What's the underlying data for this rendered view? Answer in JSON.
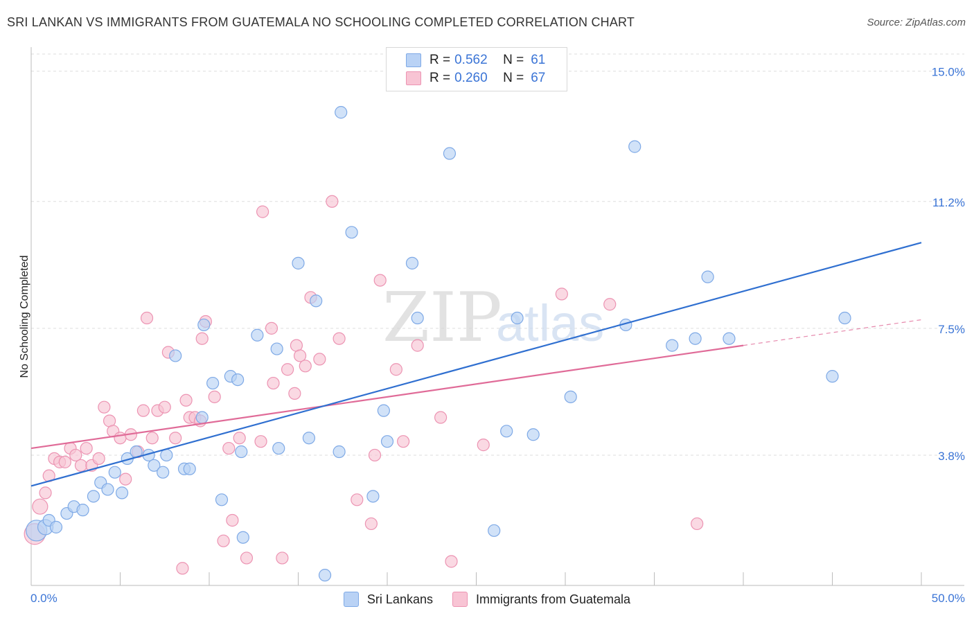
{
  "title": "SRI LANKAN VS IMMIGRANTS FROM GUATEMALA NO SCHOOLING COMPLETED CORRELATION CHART",
  "source": "Source: ZipAtlas.com",
  "watermark": {
    "zip": "ZIP",
    "atlas": "atlas"
  },
  "legend_top": [
    {
      "r_label": "R =",
      "r_value": "0.562",
      "n_label": "N =",
      "n_value": "61"
    },
    {
      "r_label": "R =",
      "r_value": "0.260",
      "n_label": "N =",
      "n_value": "67"
    }
  ],
  "colors": {
    "blue_fill": "#b9d2f5",
    "blue_stroke": "#7ea9e6",
    "blue_line": "#2f6fd0",
    "pink_fill": "#f8c4d4",
    "pink_stroke": "#ec93b2",
    "pink_line": "#e06b98",
    "grid": "#dddddd",
    "tick_label": "#3a74d6"
  },
  "chart_data": {
    "type": "scatter",
    "title": "SRI LANKAN VS IMMIGRANTS FROM GUATEMALA NO SCHOOLING COMPLETED CORRELATION CHART",
    "xlabel": "",
    "ylabel": "No Schooling Completed",
    "xlim": [
      0,
      50
    ],
    "ylim": [
      0,
      15.5
    ],
    "x_tick_labels": [
      "0.0%",
      "50.0%"
    ],
    "y_ticks": [
      3.8,
      7.5,
      11.2,
      15.0
    ],
    "y_tick_labels": [
      "3.8%",
      "7.5%",
      "11.2%",
      "15.0%"
    ],
    "grid": true,
    "legend_position": "bottom",
    "series": [
      {
        "name": "Sri Lankans",
        "color": "blue",
        "R": 0.562,
        "N": 61,
        "trendline": {
          "x": [
            0,
            50
          ],
          "y": [
            2.9,
            10.0
          ],
          "dashed_from": null
        },
        "points": [
          [
            0.3,
            1.6,
            3
          ],
          [
            0.8,
            1.7,
            2
          ],
          [
            1.0,
            1.9,
            1
          ],
          [
            1.4,
            1.7,
            1
          ],
          [
            2.0,
            2.1,
            1
          ],
          [
            2.4,
            2.3,
            1
          ],
          [
            2.9,
            2.2,
            1
          ],
          [
            3.5,
            2.6,
            1
          ],
          [
            3.9,
            3.0,
            1
          ],
          [
            4.3,
            2.8,
            1
          ],
          [
            4.7,
            3.3,
            1
          ],
          [
            5.1,
            2.7,
            1
          ],
          [
            5.4,
            3.7,
            1
          ],
          [
            5.9,
            3.9,
            1
          ],
          [
            6.6,
            3.8,
            1
          ],
          [
            6.9,
            3.5,
            1
          ],
          [
            7.4,
            3.3,
            1
          ],
          [
            7.6,
            3.8,
            1
          ],
          [
            8.1,
            6.7,
            1
          ],
          [
            8.6,
            3.4,
            1
          ],
          [
            8.9,
            3.4,
            1
          ],
          [
            9.6,
            4.9,
            1
          ],
          [
            9.7,
            7.6,
            1
          ],
          [
            10.2,
            5.9,
            1
          ],
          [
            10.7,
            2.5,
            1
          ],
          [
            11.2,
            6.1,
            1
          ],
          [
            11.6,
            6.0,
            1
          ],
          [
            11.8,
            3.9,
            1
          ],
          [
            11.9,
            1.4,
            1
          ],
          [
            12.7,
            7.3,
            1
          ],
          [
            13.8,
            6.9,
            1
          ],
          [
            13.9,
            4.0,
            1
          ],
          [
            15.0,
            9.4,
            1
          ],
          [
            15.6,
            4.3,
            1
          ],
          [
            16.0,
            8.3,
            1
          ],
          [
            16.5,
            0.3,
            1
          ],
          [
            17.3,
            3.9,
            1
          ],
          [
            17.4,
            13.8,
            1
          ],
          [
            18.0,
            10.3,
            1
          ],
          [
            19.2,
            2.6,
            1
          ],
          [
            19.8,
            5.1,
            1
          ],
          [
            20.0,
            4.2,
            1
          ],
          [
            21.4,
            9.4,
            1
          ],
          [
            21.7,
            7.8,
            1
          ],
          [
            23.5,
            12.6,
            1
          ],
          [
            26.0,
            1.6,
            1
          ],
          [
            26.7,
            4.5,
            1
          ],
          [
            27.3,
            7.8,
            1
          ],
          [
            28.2,
            4.4,
            1
          ],
          [
            30.3,
            5.5,
            1
          ],
          [
            33.4,
            7.6,
            1
          ],
          [
            33.9,
            12.8,
            1
          ],
          [
            36.0,
            7.0,
            1
          ],
          [
            37.3,
            7.2,
            1
          ],
          [
            38.0,
            9.0,
            1
          ],
          [
            39.2,
            7.2,
            1
          ],
          [
            45.0,
            6.1,
            1
          ],
          [
            45.7,
            7.8,
            1
          ]
        ]
      },
      {
        "name": "Immigrants from Guatemala",
        "color": "pink",
        "R": 0.26,
        "N": 67,
        "trendline": {
          "x": [
            0,
            50
          ],
          "y": [
            4.0,
            7.75
          ],
          "dashed_from": 40
        },
        "points": [
          [
            0.2,
            1.5,
            4
          ],
          [
            0.5,
            2.3,
            2
          ],
          [
            0.8,
            2.7,
            1
          ],
          [
            1.0,
            3.2,
            1
          ],
          [
            1.3,
            3.7,
            1
          ],
          [
            1.6,
            3.6,
            1
          ],
          [
            1.9,
            3.6,
            1
          ],
          [
            2.2,
            4.0,
            1
          ],
          [
            2.5,
            3.8,
            1
          ],
          [
            2.8,
            3.5,
            1
          ],
          [
            3.1,
            4.0,
            1
          ],
          [
            3.4,
            3.5,
            1
          ],
          [
            3.8,
            3.7,
            1
          ],
          [
            4.1,
            5.2,
            1
          ],
          [
            4.4,
            4.8,
            1
          ],
          [
            4.6,
            4.5,
            1
          ],
          [
            5.0,
            4.3,
            1
          ],
          [
            5.3,
            3.1,
            1
          ],
          [
            5.6,
            4.4,
            1
          ],
          [
            6.0,
            3.9,
            1
          ],
          [
            6.3,
            5.1,
            1
          ],
          [
            6.5,
            7.8,
            1
          ],
          [
            6.8,
            4.3,
            1
          ],
          [
            7.1,
            5.1,
            1
          ],
          [
            7.5,
            5.2,
            1
          ],
          [
            7.7,
            6.8,
            1
          ],
          [
            8.1,
            4.3,
            1
          ],
          [
            8.5,
            0.5,
            1
          ],
          [
            8.7,
            5.4,
            1
          ],
          [
            8.9,
            4.9,
            1
          ],
          [
            9.2,
            4.9,
            1
          ],
          [
            9.5,
            4.8,
            1
          ],
          [
            9.6,
            7.2,
            1
          ],
          [
            9.8,
            7.7,
            1
          ],
          [
            10.3,
            5.5,
            1
          ],
          [
            10.8,
            1.3,
            1
          ],
          [
            11.1,
            4.0,
            1
          ],
          [
            11.3,
            1.9,
            1
          ],
          [
            11.7,
            4.3,
            1
          ],
          [
            12.1,
            0.8,
            1
          ],
          [
            12.9,
            4.2,
            1
          ],
          [
            13.0,
            10.9,
            1
          ],
          [
            13.5,
            7.5,
            1
          ],
          [
            13.6,
            5.9,
            1
          ],
          [
            14.1,
            0.8,
            1
          ],
          [
            14.4,
            6.3,
            1
          ],
          [
            14.8,
            5.6,
            1
          ],
          [
            14.9,
            7.0,
            1
          ],
          [
            15.1,
            6.7,
            1
          ],
          [
            15.4,
            6.4,
            1
          ],
          [
            15.7,
            8.4,
            1
          ],
          [
            16.2,
            6.6,
            1
          ],
          [
            16.9,
            11.2,
            1
          ],
          [
            17.3,
            7.2,
            1
          ],
          [
            18.3,
            2.5,
            1
          ],
          [
            19.1,
            1.8,
            1
          ],
          [
            19.3,
            3.8,
            1
          ],
          [
            19.6,
            8.9,
            1
          ],
          [
            20.5,
            6.3,
            1
          ],
          [
            20.9,
            4.2,
            1
          ],
          [
            21.7,
            7.0,
            1
          ],
          [
            23.0,
            4.9,
            1
          ],
          [
            23.6,
            0.7,
            1
          ],
          [
            25.4,
            4.1,
            1
          ],
          [
            29.8,
            8.5,
            1
          ],
          [
            32.5,
            8.2,
            1
          ],
          [
            37.4,
            1.8,
            1
          ]
        ]
      }
    ]
  }
}
